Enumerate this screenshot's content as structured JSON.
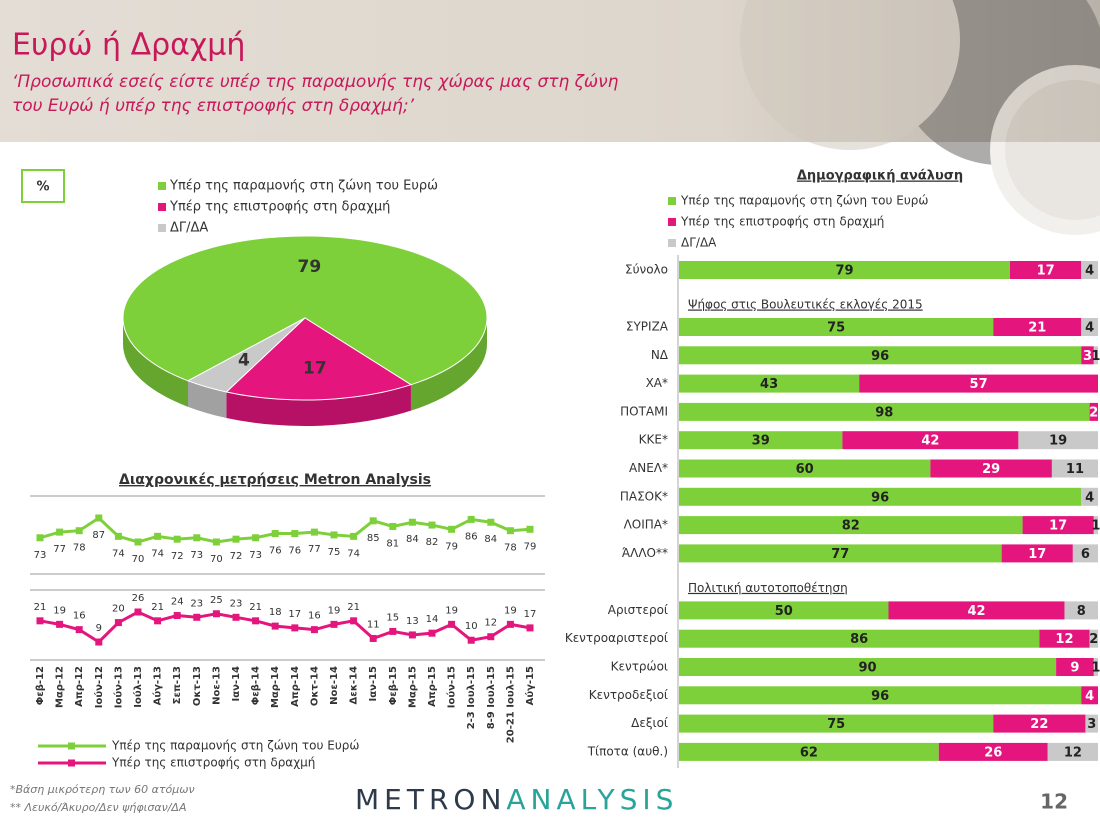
{
  "title": "Ευρώ ή Δραχμή",
  "subtitle": [
    "‘Προσωπικά εσείς είστε υπέρ της παραμονής της χώρας μας στη ζώνη",
    "του Ευρώ ή υπέρ της επιστροφής στη δραχμή;’"
  ],
  "footnotes": [
    "*Βάση μικρότερη των 60 ατόμων",
    "** Λευκό/Άκυρο/Δεν ψήφισαν/ΔΑ"
  ],
  "logo": [
    "METRON",
    "ANALYSIS"
  ],
  "page_number": 12,
  "chart_data": [
    {
      "type": "pie",
      "unit_label": "%",
      "categories": [
        "Υπέρ της παραμονής στη ζώνη του Ευρώ",
        "Υπέρ της επιστροφής στη δραχμή",
        "ΔΓ/ΔΑ"
      ],
      "values": [
        79,
        17,
        4
      ],
      "colors": [
        "#7ed03b",
        "#e4157d",
        "#c9c9c9"
      ]
    },
    {
      "type": "line",
      "title": "Διαχρονικές μετρήσεις Metron Analysis",
      "categories": [
        "Φεβ-12",
        "Μαρ-12",
        "Απρ-12",
        "Ιούν-12",
        "Ιούν-13",
        "Ιούλ-13",
        "Αύγ-13",
        "Σεπ-13",
        "Οκτ-13",
        "Νοε-13",
        "Ιαν-14",
        "Φεβ-14",
        "Μαρ-14",
        "Απρ-14",
        "Οκτ-14",
        "Νοε-14",
        "Δεκ-14",
        "Ιαν-15",
        "Φεβ-15",
        "Μαρ-15",
        "Απρ-15",
        "Ιούν-15",
        "2-3 Ιουλ-15",
        "8-9 Ιουλ-15",
        "20-21 Ιουλ-15",
        "Αύγ-15"
      ],
      "series": [
        {
          "name": "Υπέρ της παραμονής στη ζώνη του Ευρώ",
          "color": "#7ed03b",
          "values": [
            73,
            77,
            78,
            87,
            74,
            70,
            74,
            72,
            73,
            70,
            72,
            73,
            76,
            76,
            77,
            75,
            74,
            85,
            81,
            84,
            82,
            79,
            86,
            84,
            78,
            79
          ]
        },
        {
          "name": "Υπέρ της επιστροφής στη δραχμή",
          "color": "#e4157d",
          "values": [
            21,
            19,
            16,
            9,
            20,
            26,
            21,
            24,
            23,
            25,
            23,
            21,
            18,
            17,
            16,
            19,
            21,
            11,
            15,
            13,
            14,
            19,
            10,
            12,
            19,
            17
          ]
        }
      ]
    },
    {
      "type": "stacked_bar",
      "title": "Δημογραφική ανάλυση",
      "series": [
        {
          "name": "Υπέρ της παραμονής στη ζώνη του Ευρώ",
          "color": "#7ed03b"
        },
        {
          "name": "Υπέρ της επιστροφής στη δραχμή",
          "color": "#e4157d"
        },
        {
          "name": "ΔΓ/ΔΑ",
          "color": "#c9c9c9"
        }
      ],
      "groups": [
        {
          "categories": [
            "Σύνολο"
          ],
          "series": [
            {
              "values": [
                79
              ]
            },
            {
              "values": [
                17
              ]
            },
            {
              "values": [
                4
              ]
            }
          ]
        },
        {
          "title": "Ψήφος στις Βουλευτικές εκλογές 2015",
          "categories": [
            "ΣΥΡΙΖΑ",
            "ΝΔ",
            "ΧΑ*",
            "ΠΟΤΑΜΙ",
            "ΚΚΕ*",
            "ΑΝΕΛ*",
            "ΠΑΣΟΚ*",
            "ΛΟΙΠΑ*",
            "ΆΛΛΟ**"
          ],
          "series": [
            {
              "values": [
                75,
                96,
                43,
                98,
                39,
                60,
                96,
                82,
                77
              ]
            },
            {
              "values": [
                21,
                3,
                57,
                2,
                42,
                29,
                null,
                17,
                17
              ]
            },
            {
              "values": [
                4,
                1,
                null,
                null,
                19,
                11,
                4,
                1,
                6
              ]
            }
          ]
        },
        {
          "title": "Πολιτική αυτοτοποθέτηση",
          "categories": [
            "Αριστεροί",
            "Κεντροαριστεροί",
            "Κεντρώοι",
            "Κεντροδεξιοί",
            "Δεξιοί",
            "Τίποτα (αυθ.)"
          ],
          "series": [
            {
              "values": [
                50,
                86,
                90,
                96,
                75,
                62
              ]
            },
            {
              "values": [
                42,
                12,
                9,
                4,
                22,
                26
              ]
            },
            {
              "values": [
                8,
                2,
                1,
                null,
                3,
                12
              ]
            }
          ]
        }
      ]
    }
  ]
}
